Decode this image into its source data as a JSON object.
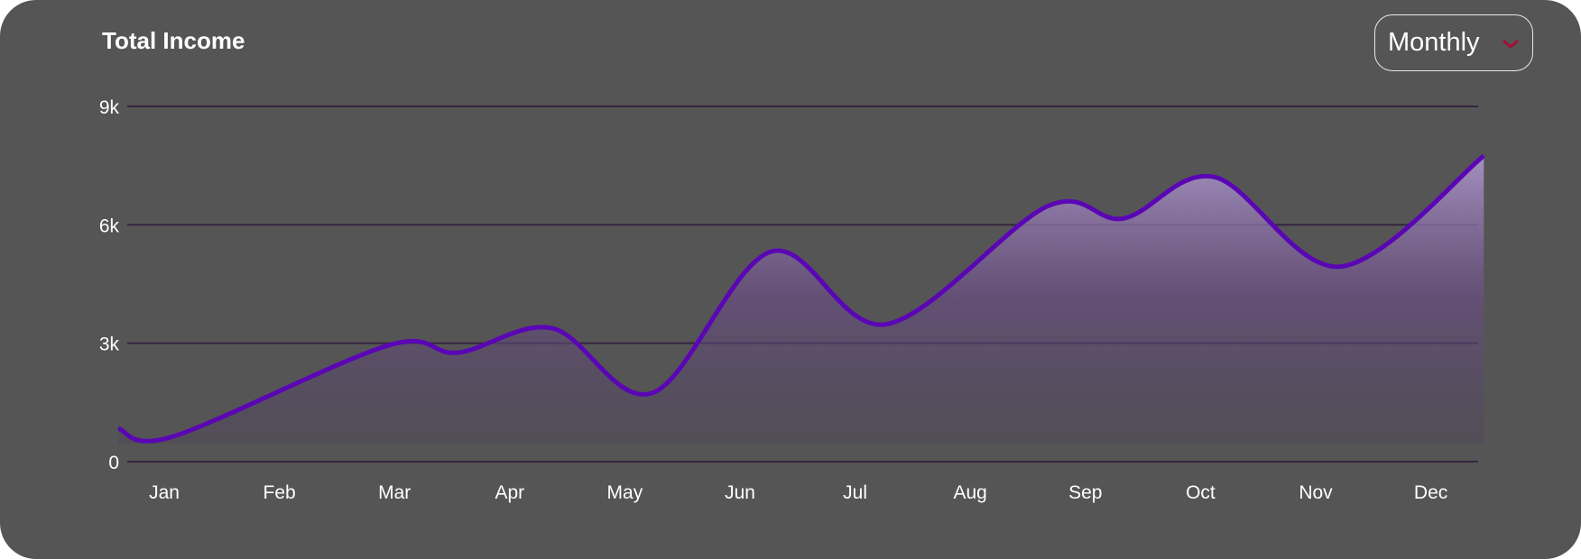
{
  "header": {
    "title": "Total Income",
    "period_select": "Monthly"
  },
  "colors": {
    "background": "#555555",
    "line": "#5a06b5",
    "grid": "#33253f",
    "chevron": "#a0103a"
  },
  "chart_data": {
    "type": "area",
    "title": "Total Income",
    "xlabel": "",
    "ylabel": "",
    "categories": [
      "Jan",
      "Feb",
      "Mar",
      "Apr",
      "May",
      "Jun",
      "Jul",
      "Aug",
      "Sep",
      "Oct",
      "Nov",
      "Dec"
    ],
    "y_ticks": [
      {
        "value": 0,
        "label": "0"
      },
      {
        "value": 3,
        "label": "3k"
      },
      {
        "value": 6,
        "label": "6k"
      },
      {
        "value": 9,
        "label": "9k"
      }
    ],
    "ylim": [
      0,
      9
    ],
    "y_unit": "thousands",
    "grid": true,
    "series": [
      {
        "name": "Total Income",
        "x": [
          -0.4,
          0.08,
          1.94,
          2.55,
          3.37,
          4.24,
          5.27,
          6.27,
          7.67,
          8.33,
          9.12,
          10.21,
          11.46
        ],
        "y": [
          0.84,
          0.64,
          2.94,
          2.76,
          3.38,
          1.74,
          5.32,
          3.48,
          6.47,
          6.16,
          7.21,
          4.94,
          7.75
        ]
      }
    ]
  }
}
